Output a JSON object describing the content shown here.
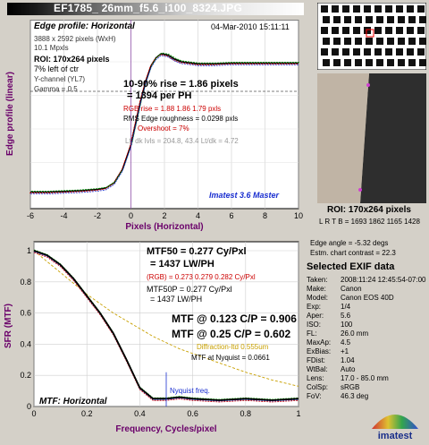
{
  "window": {
    "file_title": "EF1785_ 26mm_f5.6_i100_8324.JPG"
  },
  "edge_panel": {
    "heading": "Edge profile: Horizontal",
    "date": "04-Mar-2010 15:11:11",
    "image_size": "3888 x 2592 pixels (WxH)",
    "mpxls": "10.1 Mpxls",
    "roi": "ROI:  170x264 pixels",
    "roi_loc": "7% left of ctr",
    "channel": "Y-channel  (YL7)",
    "gamma": "Gamma = 0.5",
    "rise_line1": "10-90% rise = 1.86 pixels",
    "rise_line2": "= 1394 per PH",
    "rgb_rise": "RGB rise = 1.88  1.86  1.79 pxls",
    "rms": "RMS Edge roughness = 0.0298 pxls",
    "overshoot": "Overshoot = 7%",
    "levels": "Lt, dk lvls = 204.8, 43.4   Lt/dk = 4.72",
    "version": "Imatest 3.6 Master"
  },
  "mtf_panel": {
    "mtf50_line1": "MTF50 = 0.277 Cy/Pxl",
    "mtf50_line2": "= 1437 LW/PH",
    "mtf50_rgb": "(RGB) = 0.273  0.279  0.282 Cy/Pxl",
    "mtf50p_line1": "MTF50P = 0.277 Cy/Pxl",
    "mtf50p_line2": "= 1437 LW/PH",
    "mtf_cp1": "MTF @ 0.123 C/P = 0.906",
    "mtf_cp2": "MTF @ 0.25 C/P = 0.602",
    "diffraction": "Diffraction-ltd  0.555um",
    "nyquist_mtf": "MTF at Nyquist = 0.0661",
    "nyquist_label": "Nyquist freq.",
    "heading": "MTF: Horizontal"
  },
  "roi_panel": {
    "roi_size": "ROI:  170x264 pixels",
    "lrtb": "L R T B = 1693 1862  1165 1428"
  },
  "side_info": {
    "edge_angle": "Edge angle = -5.32 degs",
    "contrast": "Estm. chart contrast = 22.3"
  },
  "exif": {
    "title": "Selected EXIF data",
    "rows": [
      {
        "k": "Taken:",
        "v": "2008:11:24 12:45:54-07:00"
      },
      {
        "k": "Make:",
        "v": "Canon"
      },
      {
        "k": "Model:",
        "v": "Canon EOS 40D"
      },
      {
        "k": "Exp:",
        "v": "1/4"
      },
      {
        "k": "Aper:",
        "v": "5.6"
      },
      {
        "k": "ISO:",
        "v": "100"
      },
      {
        "k": "FL:",
        "v": "26.0 mm"
      },
      {
        "k": "MaxAp:",
        "v": "4.5"
      },
      {
        "k": "ExBias:",
        "v": "+1"
      },
      {
        "k": "FDist:",
        "v": "1.04"
      },
      {
        "k": "WtBal:",
        "v": "Auto"
      },
      {
        "k": "Lens:",
        "v": "17.0 - 85.0 mm"
      },
      {
        "k": "ColSp:",
        "v": "sRGB"
      },
      {
        "k": "FoV:",
        "v": "46.3 deg"
      }
    ]
  },
  "logo": {
    "text": "imatest"
  },
  "colors": {
    "red": "#cc0000",
    "green": "#009900",
    "blue": "#1a2fd0",
    "black": "#000000",
    "purple": "#6a006a",
    "diffraction": "#c8a000"
  },
  "chart_data": [
    {
      "type": "line",
      "title": "Edge profile: Horizontal",
      "xlabel": "Pixels (Horizontal)",
      "ylabel": "Edge profile (linear)",
      "xlim": [
        -6,
        10
      ],
      "xticks": [
        -6,
        -4,
        -2,
        0,
        2,
        4,
        6,
        8,
        10
      ],
      "grid": true,
      "x": [
        -6,
        -5,
        -4,
        -3,
        -2,
        -1.5,
        -1,
        -0.5,
        0,
        0.3,
        0.6,
        0.9,
        1.2,
        1.5,
        1.8,
        2.2,
        2.6,
        3,
        4,
        5,
        6,
        7,
        8,
        9,
        10
      ],
      "series": [
        {
          "values": [
            0.03,
            0.03,
            0.035,
            0.04,
            0.05,
            0.06,
            0.1,
            0.2,
            0.38,
            0.55,
            0.72,
            0.86,
            0.97,
            1.03,
            1.06,
            1.05,
            1.02,
            1.0,
            0.985,
            0.985,
            0.99,
            0.99,
            0.99,
            0.99,
            0.99
          ]
        }
      ]
    },
    {
      "type": "line",
      "title": "MTF: Horizontal",
      "xlabel": "Frequency, Cycles/pixel",
      "ylabel": "SFR (MTF)",
      "xlim": [
        0,
        1
      ],
      "ylim": [
        0,
        1
      ],
      "xticks": [
        0,
        0.2,
        0.4,
        0.6,
        0.8,
        1
      ],
      "yticks": [
        0,
        0.2,
        0.4,
        0.6,
        0.8,
        1
      ],
      "grid": true,
      "x": [
        0,
        0.05,
        0.1,
        0.15,
        0.2,
        0.25,
        0.3,
        0.35,
        0.4,
        0.45,
        0.5,
        0.55,
        0.6,
        0.7,
        0.8,
        0.9,
        1.0
      ],
      "series": [
        {
          "values": [
            1.0,
            0.97,
            0.91,
            0.82,
            0.71,
            0.6,
            0.47,
            0.3,
            0.12,
            0.05,
            0.05,
            0.06,
            0.05,
            0.04,
            0.05,
            0.04,
            0.05
          ]
        },
        {
          "values": [
            1.0,
            0.93,
            0.86,
            0.79,
            0.72,
            0.66,
            0.6,
            0.55,
            0.5,
            0.45,
            0.41,
            0.37,
            0.34,
            0.28,
            0.22,
            0.17,
            0.13
          ]
        }
      ],
      "nyquist_x": 0.5
    }
  ]
}
